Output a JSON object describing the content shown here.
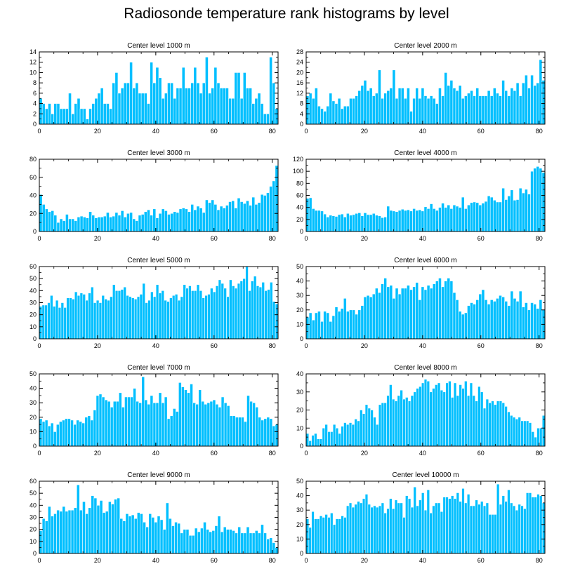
{
  "title": "Radiosonde temperature rank histograms by level",
  "colors": {
    "bar": "#00BFFF",
    "bar_edge": "#FFFFFF",
    "axis": "#000000"
  },
  "chart_data": [
    {
      "type": "bar",
      "title": "Center level 1000 m",
      "ylim": [
        0,
        14
      ],
      "yticks": [
        0,
        2,
        4,
        6,
        8,
        10,
        12,
        14
      ],
      "xlim": [
        0,
        82
      ],
      "xticks": [
        0,
        20,
        40,
        60,
        80
      ],
      "values": [
        5,
        4,
        3,
        4,
        2,
        4,
        4,
        3,
        3,
        3,
        6,
        2,
        4,
        5,
        3,
        3,
        1,
        3,
        4,
        5,
        6,
        7,
        4,
        4,
        3,
        8,
        10,
        6,
        7,
        8,
        8,
        12,
        7,
        8,
        6,
        6,
        6,
        4,
        12,
        8,
        11,
        9,
        5,
        6,
        8,
        8,
        5,
        7,
        7,
        11,
        7,
        7,
        8,
        11,
        8,
        6,
        8,
        13,
        6,
        7,
        11,
        8,
        7,
        7,
        7,
        5,
        5,
        10,
        10,
        5,
        10,
        7,
        7,
        4,
        5,
        6,
        4,
        2,
        2,
        13,
        8,
        3
      ]
    },
    {
      "type": "bar",
      "title": "Center level 2000 m",
      "ylim": [
        0,
        28
      ],
      "yticks": [
        0,
        4,
        8,
        12,
        16,
        20,
        24,
        28
      ],
      "xlim": [
        0,
        82
      ],
      "xticks": [
        0,
        20,
        40,
        60,
        80
      ],
      "values": [
        11,
        12,
        10,
        14,
        7,
        6,
        5,
        7,
        12,
        9,
        8,
        10,
        6,
        7,
        7,
        10,
        10,
        11,
        13,
        15,
        17,
        13,
        14,
        11,
        12,
        21,
        10,
        12,
        13,
        14,
        21,
        10,
        14,
        14,
        10,
        14,
        5,
        10,
        14,
        10,
        14,
        11,
        10,
        11,
        10,
        8,
        14,
        11,
        20,
        15,
        17,
        14,
        13,
        15,
        10,
        11,
        12,
        13,
        11,
        14,
        11,
        11,
        11,
        13,
        11,
        14,
        12,
        11,
        17,
        13,
        11,
        14,
        13,
        16,
        11,
        16,
        19,
        14,
        19,
        15,
        16,
        25,
        17
      ]
    },
    {
      "type": "bar",
      "title": "Center level 3000 m",
      "ylim": [
        0,
        80
      ],
      "yticks": [
        0,
        20,
        40,
        60,
        80
      ],
      "xlim": [
        0,
        82
      ],
      "xticks": [
        0,
        20,
        40,
        60,
        80
      ],
      "values": [
        41,
        30,
        25,
        22,
        23,
        18,
        10,
        14,
        12,
        19,
        14,
        14,
        12,
        16,
        17,
        16,
        15,
        22,
        18,
        15,
        16,
        16,
        17,
        21,
        16,
        17,
        21,
        18,
        23,
        16,
        20,
        21,
        14,
        12,
        18,
        19,
        22,
        24,
        18,
        25,
        15,
        20,
        25,
        23,
        19,
        20,
        22,
        21,
        25,
        26,
        25,
        22,
        30,
        24,
        28,
        26,
        21,
        35,
        32,
        35,
        30,
        24,
        28,
        26,
        29,
        33,
        34,
        26,
        37,
        33,
        31,
        34,
        29,
        38,
        30,
        32,
        41,
        40,
        43,
        50,
        56,
        73
      ]
    },
    {
      "type": "bar",
      "title": "Center level 4000 m",
      "ylim": [
        0,
        120
      ],
      "yticks": [
        0,
        20,
        40,
        60,
        80,
        100,
        120
      ],
      "xlim": [
        0,
        82
      ],
      "xticks": [
        0,
        20,
        40,
        60,
        80
      ],
      "values": [
        55,
        56,
        38,
        35,
        35,
        34,
        29,
        24,
        27,
        26,
        25,
        28,
        29,
        24,
        30,
        27,
        28,
        30,
        31,
        26,
        31,
        28,
        28,
        30,
        27,
        26,
        23,
        24,
        42,
        35,
        34,
        33,
        35,
        37,
        35,
        36,
        34,
        38,
        35,
        36,
        34,
        41,
        38,
        46,
        38,
        35,
        40,
        47,
        40,
        44,
        38,
        44,
        42,
        40,
        57,
        38,
        44,
        48,
        49,
        48,
        44,
        47,
        50,
        59,
        57,
        52,
        49,
        49,
        72,
        53,
        59,
        69,
        52,
        53,
        72,
        64,
        70,
        62,
        100,
        105,
        108,
        105,
        98
      ]
    },
    {
      "type": "bar",
      "title": "Center level 5000 m",
      "ylim": [
        0,
        60
      ],
      "yticks": [
        0,
        10,
        20,
        30,
        40,
        50,
        60
      ],
      "xlim": [
        0,
        82
      ],
      "xticks": [
        0,
        20,
        40,
        60,
        80
      ],
      "values": [
        27,
        28,
        28,
        30,
        36,
        27,
        32,
        26,
        30,
        26,
        34,
        34,
        33,
        39,
        36,
        38,
        37,
        32,
        38,
        43,
        30,
        32,
        30,
        36,
        33,
        32,
        35,
        45,
        40,
        40,
        41,
        43,
        36,
        35,
        34,
        33,
        35,
        37,
        46,
        30,
        32,
        39,
        35,
        45,
        38,
        40,
        32,
        31,
        34,
        36,
        37,
        32,
        35,
        45,
        42,
        44,
        40,
        40,
        45,
        40,
        34,
        36,
        37,
        42,
        39,
        44,
        49,
        46,
        42,
        35,
        49,
        44,
        42,
        46,
        48,
        50,
        60,
        40,
        48,
        52,
        44,
        43,
        47,
        40,
        41,
        47,
        31,
        29
      ]
    },
    {
      "type": "bar",
      "title": "Center level 6000 m",
      "ylim": [
        0,
        50
      ],
      "yticks": [
        0,
        10,
        20,
        30,
        40,
        50
      ],
      "xlim": [
        0,
        82
      ],
      "xticks": [
        0,
        20,
        40,
        60,
        80
      ],
      "values": [
        15,
        18,
        13,
        18,
        19,
        12,
        19,
        18,
        12,
        16,
        22,
        19,
        21,
        28,
        19,
        20,
        20,
        17,
        20,
        23,
        29,
        30,
        29,
        31,
        35,
        32,
        38,
        42,
        36,
        37,
        28,
        35,
        31,
        35,
        35,
        37,
        34,
        36,
        39,
        27,
        36,
        34,
        37,
        35,
        38,
        40,
        42,
        36,
        40,
        42,
        40,
        32,
        27,
        19,
        17,
        18,
        23,
        25,
        24,
        27,
        31,
        34,
        27,
        24,
        27,
        26,
        28,
        30,
        29,
        26,
        23,
        33,
        28,
        26,
        33,
        22,
        25,
        20,
        25,
        24,
        21,
        27,
        20
      ]
    },
    {
      "type": "bar",
      "title": "Center level 7000 m",
      "ylim": [
        0,
        50
      ],
      "yticks": [
        0,
        10,
        20,
        30,
        40,
        50
      ],
      "xlim": [
        0,
        82
      ],
      "xticks": [
        0,
        20,
        40,
        60,
        80
      ],
      "values": [
        19,
        17,
        18,
        14,
        16,
        10,
        15,
        17,
        18,
        19,
        19,
        18,
        15,
        18,
        17,
        16,
        20,
        21,
        18,
        25,
        35,
        36,
        34,
        32,
        31,
        27,
        31,
        31,
        37,
        27,
        34,
        34,
        34,
        40,
        31,
        30,
        48,
        32,
        29,
        35,
        30,
        30,
        37,
        30,
        34,
        19,
        21,
        26,
        24,
        44,
        41,
        39,
        37,
        43,
        30,
        29,
        39,
        31,
        29,
        30,
        31,
        32,
        29,
        27,
        34,
        30,
        28,
        21,
        21,
        20,
        20,
        20,
        17,
        35,
        31,
        30,
        27,
        20,
        18,
        19,
        20,
        19,
        14,
        15
      ]
    },
    {
      "type": "bar",
      "title": "Center level 8000 m",
      "ylim": [
        0,
        40
      ],
      "yticks": [
        0,
        10,
        20,
        30,
        40
      ],
      "xlim": [
        0,
        82
      ],
      "xticks": [
        0,
        20,
        40,
        60,
        80
      ],
      "values": [
        7,
        3,
        6,
        7,
        4,
        4,
        10,
        12,
        8,
        8,
        12,
        10,
        7,
        11,
        13,
        12,
        13,
        12,
        15,
        14,
        20,
        18,
        23,
        21,
        20,
        16,
        12,
        23,
        24,
        24,
        28,
        34,
        26,
        25,
        28,
        31,
        26,
        27,
        25,
        28,
        30,
        32,
        33,
        35,
        37,
        36,
        30,
        32,
        34,
        35,
        31,
        30,
        35,
        36,
        27,
        35,
        28,
        34,
        32,
        36,
        28,
        35,
        28,
        25,
        33,
        30,
        21,
        26,
        24,
        25,
        23,
        25,
        25,
        24,
        22,
        19,
        17,
        16,
        15,
        16,
        14,
        14,
        14,
        13,
        8,
        5,
        10,
        10,
        17
      ]
    },
    {
      "type": "bar",
      "title": "Center level 9000 m",
      "ylim": [
        0,
        60
      ],
      "yticks": [
        0,
        10,
        20,
        30,
        40,
        50,
        60
      ],
      "xlim": [
        0,
        82
      ],
      "xticks": [
        0,
        20,
        40,
        60,
        80
      ],
      "values": [
        19,
        29,
        27,
        39,
        31,
        33,
        36,
        35,
        39,
        35,
        36,
        36,
        38,
        57,
        36,
        43,
        33,
        38,
        48,
        46,
        40,
        44,
        34,
        35,
        43,
        41,
        45,
        46,
        29,
        27,
        33,
        31,
        32,
        29,
        34,
        33,
        26,
        22,
        33,
        30,
        26,
        31,
        28,
        20,
        42,
        29,
        23,
        26,
        25,
        17,
        20,
        20,
        15,
        15,
        21,
        18,
        21,
        26,
        20,
        18,
        19,
        23,
        31,
        18,
        22,
        20,
        20,
        19,
        17,
        22,
        17,
        17,
        22,
        17,
        17,
        19,
        17,
        24,
        17,
        12,
        13,
        9,
        5
      ]
    },
    {
      "type": "bar",
      "title": "Center level 10000 m",
      "ylim": [
        0,
        50
      ],
      "yticks": [
        0,
        10,
        20,
        30,
        40,
        50
      ],
      "xlim": [
        0,
        82
      ],
      "xticks": [
        0,
        20,
        40,
        60,
        80
      ],
      "values": [
        24,
        18,
        29,
        24,
        24,
        26,
        25,
        27,
        25,
        28,
        20,
        24,
        24,
        26,
        25,
        33,
        35,
        32,
        34,
        36,
        35,
        38,
        41,
        34,
        32,
        33,
        32,
        33,
        35,
        28,
        31,
        38,
        31,
        37,
        35,
        35,
        25,
        40,
        38,
        32,
        46,
        33,
        37,
        42,
        30,
        44,
        28,
        33,
        35,
        35,
        29,
        39,
        39,
        38,
        40,
        38,
        42,
        36,
        45,
        35,
        41,
        33,
        33,
        37,
        34,
        36,
        33,
        35,
        27,
        27,
        27,
        48,
        34,
        40,
        36,
        44,
        35,
        33,
        30,
        34,
        33,
        31,
        42,
        42,
        39,
        39,
        41,
        40,
        35
      ]
    }
  ]
}
